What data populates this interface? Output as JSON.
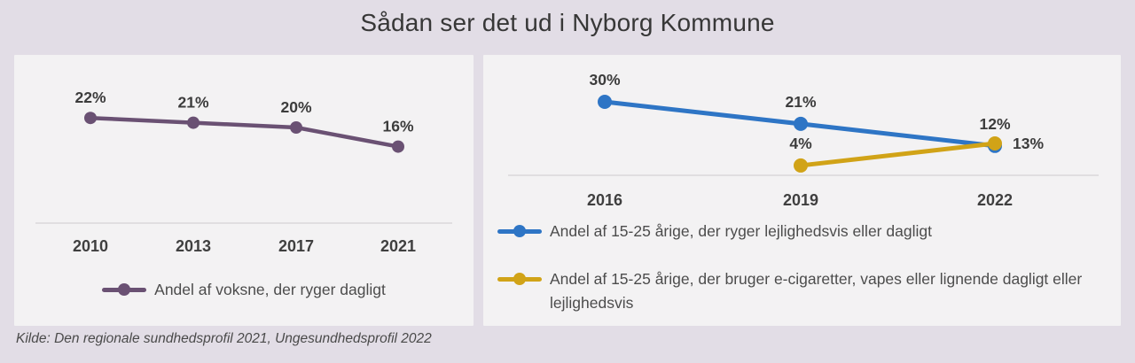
{
  "title": "Sådan ser det ud i Nyborg Kommune",
  "source": "Kilde: Den regionale sundhedsprofil 2021, Ungesundhedsprofil 2022",
  "colors": {
    "background": "#e2dde6",
    "panel": "#f3f2f3",
    "purple": "#6a5173",
    "blue": "#2e75c5",
    "gold": "#d1a317",
    "axis": "#d9d7d9"
  },
  "chart_data": [
    {
      "type": "line",
      "title": "",
      "categories": [
        "2010",
        "2013",
        "2017",
        "2021"
      ],
      "series": [
        {
          "name": "Andel af voksne, der ryger dagligt",
          "values": [
            22,
            21,
            20,
            16
          ],
          "labels": [
            "22%",
            "21%",
            "20%",
            "16%"
          ],
          "color_key": "purple"
        }
      ],
      "ylabel": "",
      "xlabel": "",
      "ylim": [
        0,
        35
      ],
      "grid": false,
      "legend_position": "bottom-center",
      "value_suffix": "%"
    },
    {
      "type": "line",
      "title": "",
      "categories": [
        "2016",
        "2019",
        "2022"
      ],
      "series": [
        {
          "name": "Andel af 15-25 årige, der ryger lejlighedsvis eller dagligt",
          "values": [
            30,
            21,
            12
          ],
          "labels": [
            "30%",
            "21%",
            "12%"
          ],
          "color_key": "blue"
        },
        {
          "name": "Andel af 15-25 årige, der bruger e-cigaretter, vapes eller lignende dagligt eller lejlighedsvis",
          "values": [
            null,
            4,
            13
          ],
          "labels": [
            null,
            "4%",
            "13%"
          ],
          "color_key": "gold"
        }
      ],
      "ylabel": "",
      "xlabel": "",
      "ylim": [
        0,
        49
      ],
      "grid": false,
      "legend_position": "bottom-left",
      "value_suffix": "%"
    }
  ]
}
